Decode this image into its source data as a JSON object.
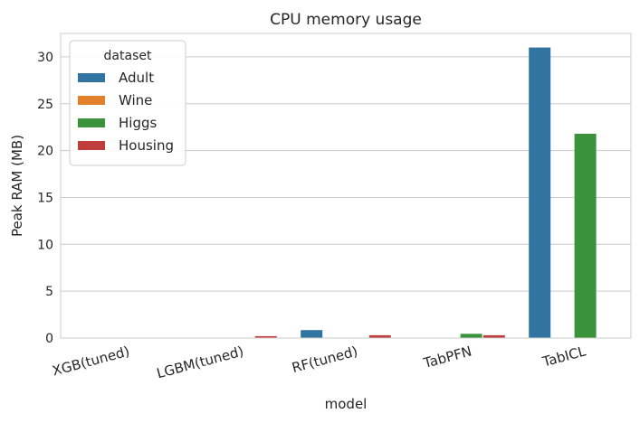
{
  "chart_data": {
    "type": "bar",
    "title": "CPU memory usage",
    "xlabel": "model",
    "ylabel": "Peak RAM (MB)",
    "categories": [
      "XGB(tuned)",
      "LGBM(tuned)",
      "RF(tuned)",
      "TabPFN",
      "TabICL"
    ],
    "series": [
      {
        "name": "Adult",
        "color": "#3274a1",
        "values": [
          0.02,
          0.02,
          0.85,
          0.02,
          31.0
        ]
      },
      {
        "name": "Wine",
        "color": "#e1812c",
        "values": [
          0.01,
          0.01,
          0.05,
          0.01,
          0.0
        ]
      },
      {
        "name": "Higgs",
        "color": "#3a923a",
        "values": [
          0.02,
          0.02,
          0.05,
          0.45,
          21.8
        ]
      },
      {
        "name": "Housing",
        "color": "#c03d3e",
        "values": [
          0.01,
          0.2,
          0.3,
          0.3,
          0.0
        ]
      }
    ],
    "ylim": [
      0,
      32.5
    ],
    "yticks": [
      0,
      5,
      10,
      15,
      20,
      25,
      30
    ],
    "grid": true,
    "legend": {
      "title": "dataset",
      "position": "top-left"
    }
  }
}
